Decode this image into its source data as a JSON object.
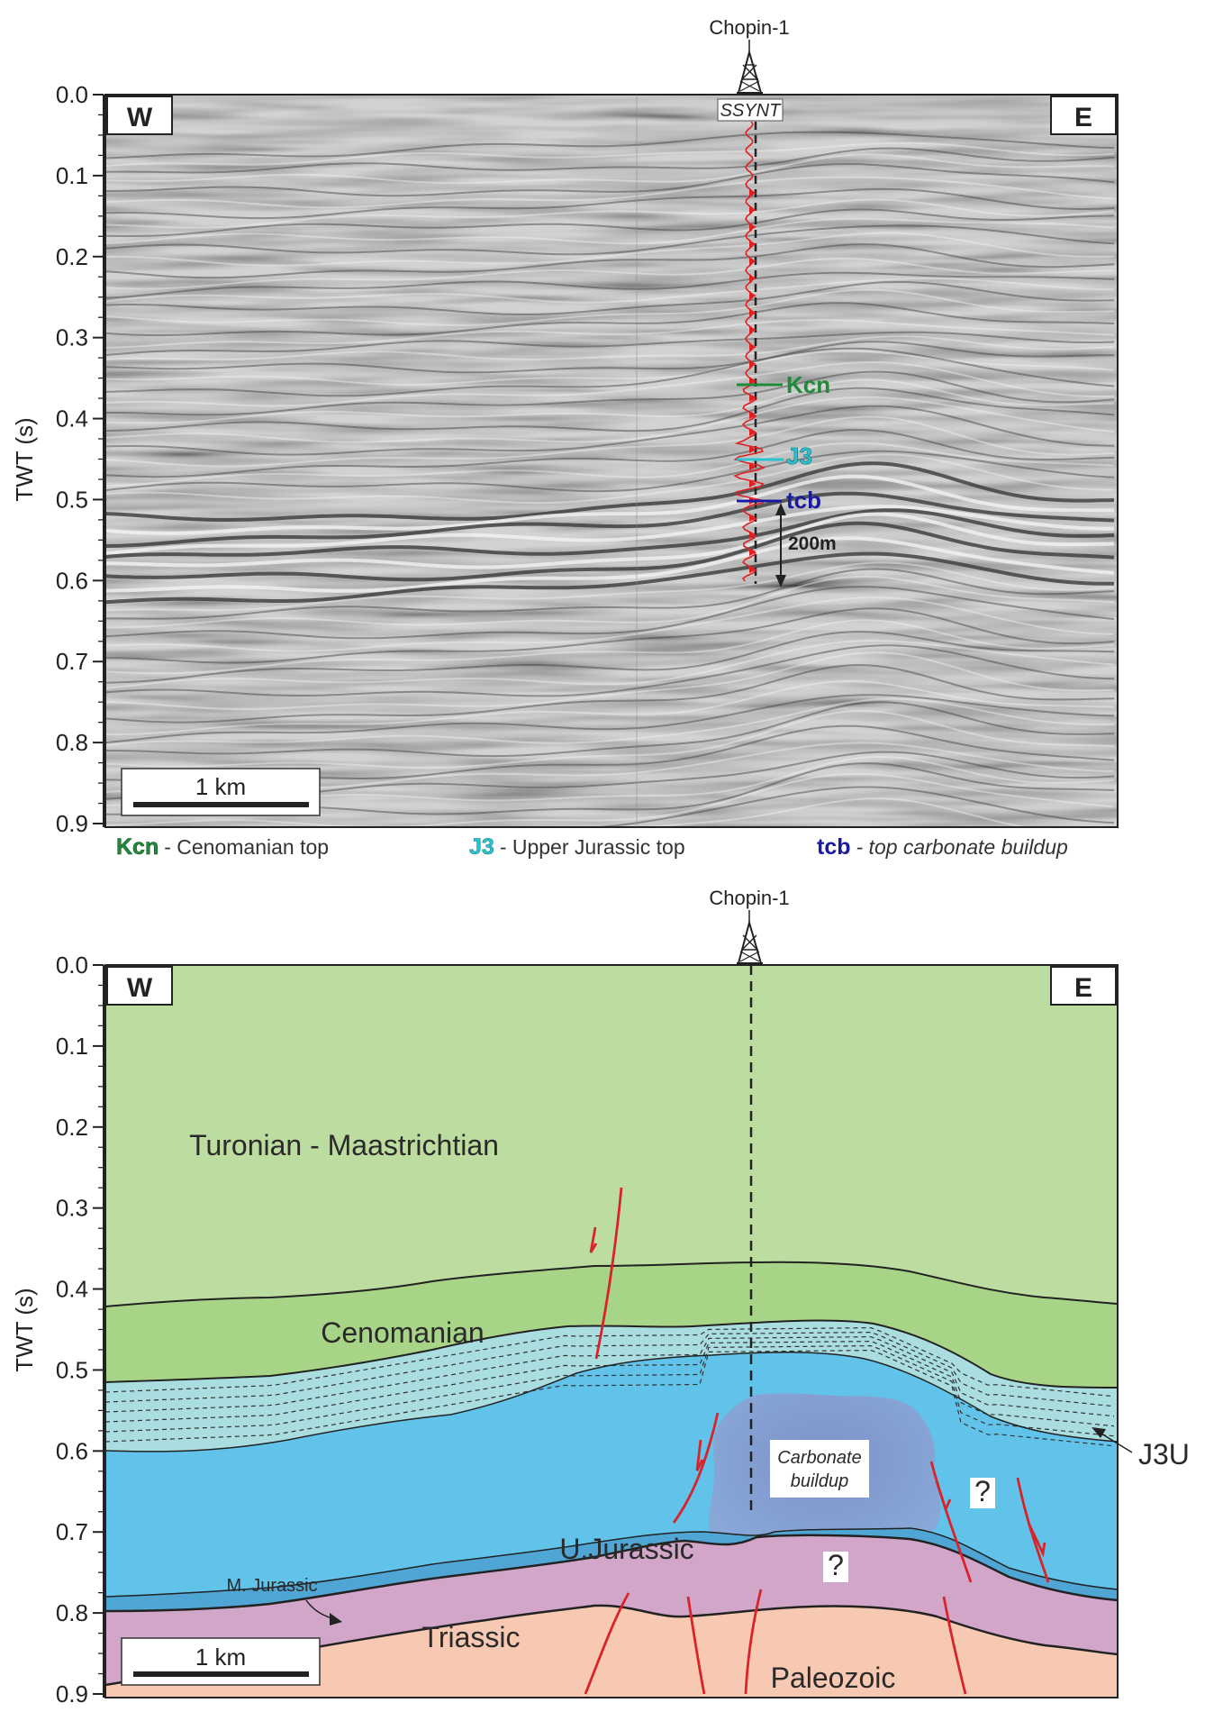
{
  "well": {
    "name": "Chopin-1",
    "synthetic_label": "SSYNT"
  },
  "directions": {
    "west": "W",
    "east": "E"
  },
  "axis": {
    "title": "TWT (s)",
    "ticks": [
      "0.0",
      "0.1",
      "0.2",
      "0.3",
      "0.4",
      "0.5",
      "0.6",
      "0.7",
      "0.8",
      "0.9"
    ]
  },
  "scale_bar": {
    "label": "1 km"
  },
  "seismic": {
    "horizons": [
      {
        "code": "Kcn",
        "color": "#1f8a3a"
      },
      {
        "code": "J3",
        "color": "#29c4d0"
      },
      {
        "code": "tcb",
        "color": "#1a1aa0"
      }
    ],
    "thickness_label": "200m"
  },
  "legend": [
    {
      "code": "Kcn",
      "desc": "- Cenomanian top",
      "color": "#1f8a3a",
      "italic": false
    },
    {
      "code": "J3",
      "desc": "- Upper Jurassic top",
      "color": "#29c4d0",
      "italic": false
    },
    {
      "code": "tcb",
      "desc": "- top carbonate buildup",
      "color": "#1a1aa0",
      "italic": true
    }
  ],
  "geology": {
    "units": {
      "turonian": "Turonian - Maastrichtian",
      "cenomanian": "Cenomanian",
      "ujurassic": "U.Jurassic",
      "mjurassic": "M. Jurassic",
      "triassic": "Triassic",
      "paleozoic": "Paleozoic",
      "j3u": "J3U"
    },
    "buildup_line1": "Carbonate",
    "buildup_line2": "buildup",
    "question": "?",
    "colors": {
      "turonian": "#bddc9f",
      "cenomanian": "#a8d487",
      "j3u": "#a9dde0",
      "ujurassic": "#62c3ea",
      "buildup": "#7f93c9",
      "triassic": "#d2a6c8",
      "paleozoic": "#f7c9b3",
      "fault": "#d9232a"
    }
  }
}
